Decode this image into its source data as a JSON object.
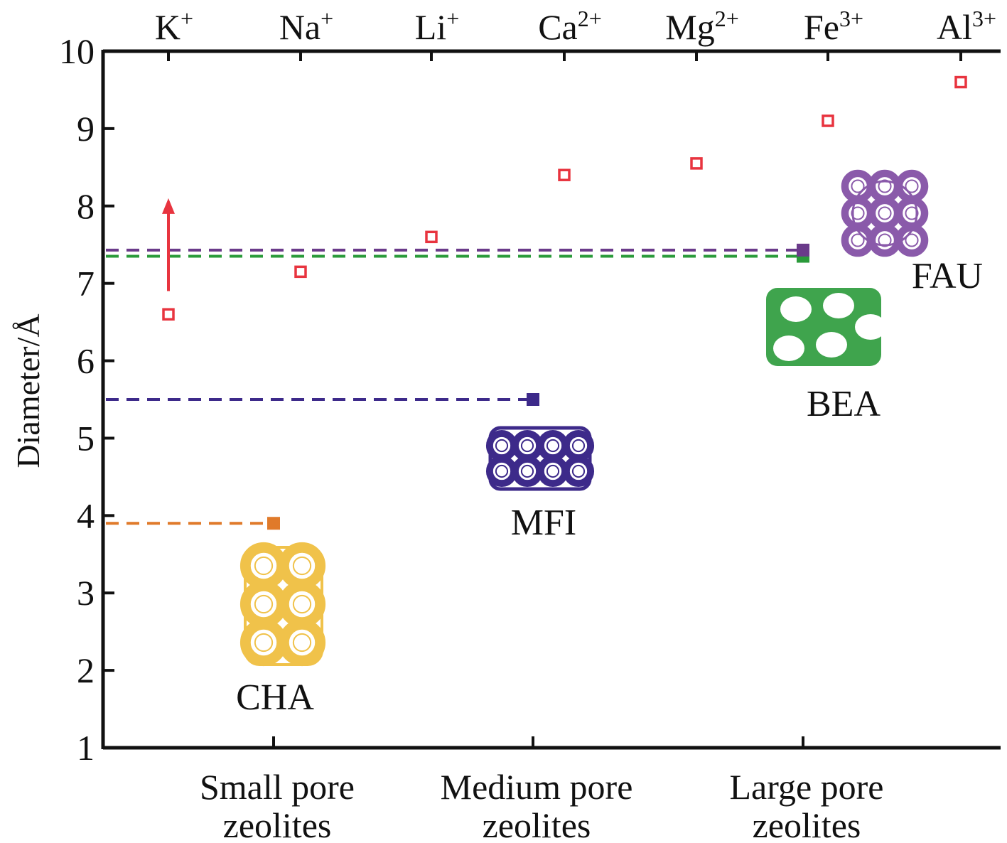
{
  "chart_data": {
    "type": "scatter",
    "ylabel": "Diameter/Å",
    "ylim": [
      1,
      10
    ],
    "yticks": [
      1,
      2,
      3,
      4,
      5,
      6,
      7,
      8,
      9,
      10
    ],
    "top_axis": {
      "ions": [
        {
          "base": "K",
          "charge": "+",
          "diameter": 6.6
        },
        {
          "base": "Na",
          "charge": "+",
          "diameter": 7.15
        },
        {
          "base": "Li",
          "charge": "+",
          "diameter": 7.6
        },
        {
          "base": "Ca",
          "charge": "2+",
          "diameter": 8.4
        },
        {
          "base": "Mg",
          "charge": "2+",
          "diameter": 8.55
        },
        {
          "base": "Fe",
          "charge": "3+",
          "diameter": 9.1
        },
        {
          "base": "Al",
          "charge": "3+",
          "diameter": 9.6
        }
      ],
      "series_color": "#e8343f"
    },
    "bottom_categories": [
      {
        "line1": "Small pore",
        "line2": "zeolites"
      },
      {
        "line1": "Medium pore",
        "line2": "zeolites"
      },
      {
        "line1": "Large pore",
        "line2": "zeolites"
      }
    ],
    "zeolites": [
      {
        "name": "CHA",
        "category": 0,
        "pore": 3.9,
        "color": "#e07a2a",
        "structure_color": "#f0c24a"
      },
      {
        "name": "MFI",
        "category": 1,
        "pore": 5.5,
        "color": "#3d2a8a",
        "structure_color": "#3d2a8a"
      },
      {
        "name": "BEA",
        "category": 2,
        "pore": 7.35,
        "color": "#2a9a3a",
        "structure_color": "#2a9a3a"
      },
      {
        "name": "FAU",
        "category": 2,
        "pore": 7.43,
        "color": "#6a3a8a",
        "structure_color": "#8a5aaa"
      }
    ],
    "arrow": {
      "ion_index": 0,
      "from": 6.9,
      "to": 8.1,
      "color": "#e8343f"
    }
  }
}
